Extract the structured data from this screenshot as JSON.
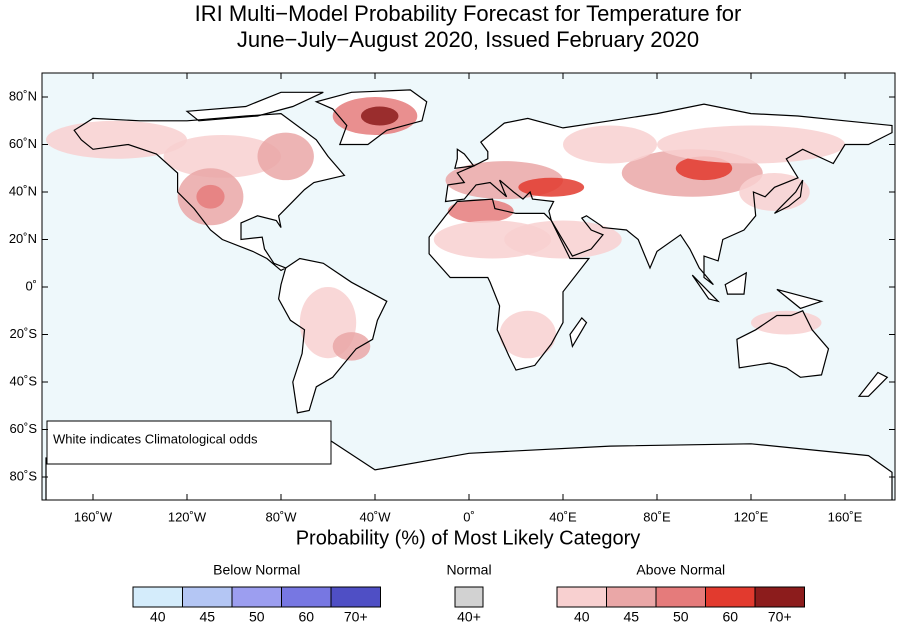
{
  "title": [
    "IRI Multi−Model Probability Forecast for Temperature for",
    "June−July−August 2020, Issued February 2020"
  ],
  "map": {
    "lat_labels": [
      "80˚N",
      "60˚N",
      "40˚N",
      "20˚N",
      "0˚",
      "20˚S",
      "40˚S",
      "60˚S",
      "80˚S"
    ],
    "lon_labels": [
      "160˚W",
      "120˚W",
      "80˚W",
      "40˚W",
      "0˚",
      "40˚E",
      "80˚E",
      "120˚E",
      "160˚E"
    ],
    "annotation": "White indicates Climatological odds"
  },
  "legend": {
    "title": "Probability (%) of Most Likely Category",
    "groups": [
      {
        "name": "Below Normal",
        "colors": [
          "#d4ecfb",
          "#b4c6f4",
          "#9c9ef0",
          "#7777e2",
          "#4f4fc5"
        ],
        "labels": [
          "40",
          "45",
          "50",
          "60",
          "70+"
        ]
      },
      {
        "name": "Normal",
        "colors": [
          "#d2d2d2"
        ],
        "labels": [
          "40+"
        ]
      },
      {
        "name": "Above Normal",
        "colors": [
          "#f8d0d0",
          "#eaa7a7",
          "#e57b7b",
          "#e23a2e",
          "#8c1c1c"
        ],
        "labels": [
          "40",
          "45",
          "50",
          "60",
          "70+"
        ]
      }
    ]
  }
}
